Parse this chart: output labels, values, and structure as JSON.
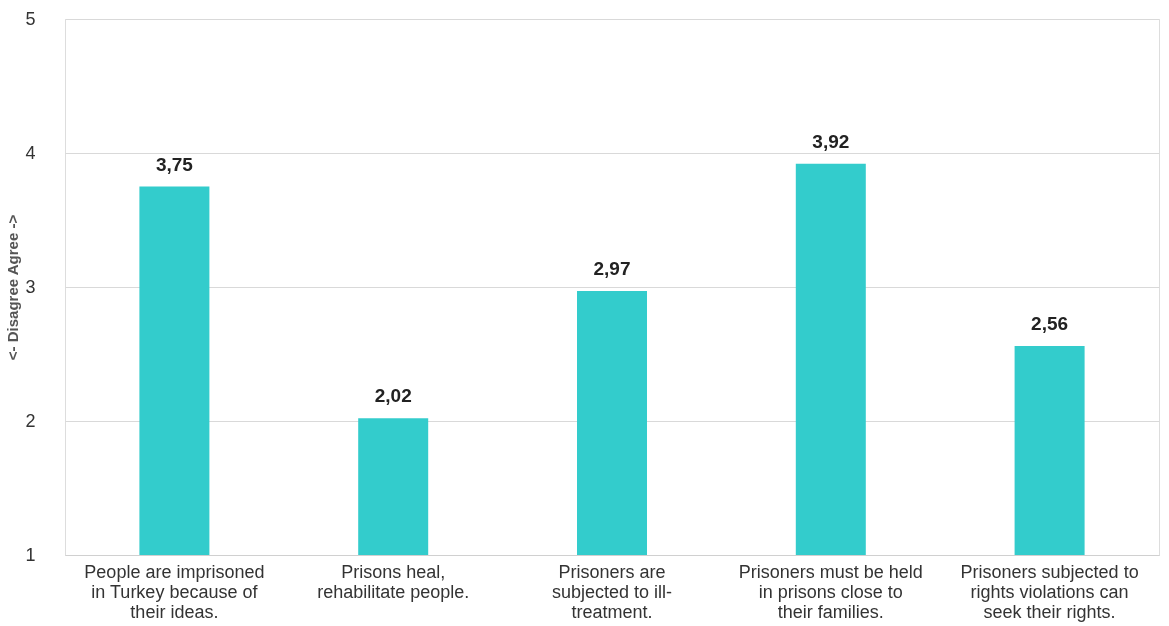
{
  "chart_data": {
    "type": "bar",
    "ylabel": "<- Disagree                              Agree ->",
    "categories": [
      "People are imprisoned in Turkey because of their ideas.",
      "Prisons heal, rehabilitate people.",
      "Prisoners are subjected to ill-treatment.",
      "Prisoners must be held in prisons close to their families.",
      "Prisoners subjected to rights violations can seek their rights."
    ],
    "values": [
      3.75,
      2.02,
      2.97,
      3.92,
      2.56
    ],
    "value_labels": [
      "3,75",
      "2,02",
      "2,97",
      "3,92",
      "2,56"
    ],
    "color": "#33cccc",
    "ylim": [
      1,
      5
    ],
    "yticks": [
      1,
      2,
      3,
      4,
      5
    ],
    "grid": "y",
    "legend": false
  }
}
